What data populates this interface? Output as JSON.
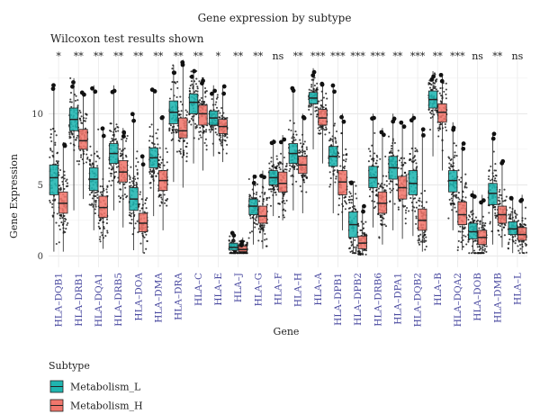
{
  "chart_data": {
    "type": "box",
    "title": "Gene expression by subtype",
    "subtitle": "Wilcoxon test results shown",
    "xlabel": "Gene",
    "ylabel": "Gene Expression",
    "ylim": [
      -0.8,
      14.2
    ],
    "yticks": [
      0,
      5,
      10
    ],
    "grid": true,
    "categories": [
      "HLA–DQB1",
      "HLA–DRB1",
      "HLA–DQA1",
      "HLA–DRB5",
      "HLA–DOA",
      "HLA–DMA",
      "HLA–DRA",
      "HLA–C",
      "HLA–E",
      "HLA–J",
      "HLA–G",
      "HLA–F",
      "HLA–H",
      "HLA–A",
      "HLA–DPB1",
      "HLA–DPB2",
      "HLA–DRB6",
      "HLA–DPA1",
      "HLA–DQB2",
      "HLA–B",
      "HLA–DQA2",
      "HLA–DOB",
      "HLA–DMB",
      "HLA–L"
    ],
    "significance": [
      "*",
      "**",
      "**",
      "**",
      "**",
      "**",
      "**",
      "**",
      "*",
      "**",
      "**",
      "ns",
      "**",
      "***",
      "***",
      "***",
      "***",
      "**",
      "***",
      "**",
      "***",
      "ns",
      "**",
      "ns"
    ],
    "series": [
      {
        "name": "Metabolism_L",
        "color": "#1fb5b0",
        "boxes": [
          [
            0.3,
            4.3,
            5.5,
            6.4,
            12.0
          ],
          [
            3.2,
            8.8,
            9.6,
            10.4,
            12.5
          ],
          [
            1.8,
            4.6,
            5.4,
            6.2,
            12.0
          ],
          [
            3.2,
            6.5,
            7.2,
            7.9,
            12.0
          ],
          [
            0.4,
            3.2,
            4.0,
            4.8,
            10.0
          ],
          [
            2.8,
            6.2,
            6.9,
            7.6,
            11.8
          ],
          [
            5.2,
            9.3,
            10.1,
            10.9,
            13.4
          ],
          [
            6.5,
            10.0,
            10.8,
            11.4,
            13.0
          ],
          [
            7.0,
            9.2,
            9.7,
            10.2,
            12.0
          ],
          [
            0.2,
            0.4,
            0.6,
            0.9,
            1.7
          ],
          [
            0.8,
            2.9,
            3.5,
            4.0,
            5.7
          ],
          [
            2.8,
            5.0,
            5.5,
            6.0,
            8.2
          ],
          [
            3.2,
            6.5,
            7.2,
            7.9,
            11.8
          ],
          [
            7.5,
            10.7,
            11.1,
            11.5,
            13.2
          ],
          [
            3.0,
            6.3,
            7.0,
            7.7,
            12.0
          ],
          [
            0.2,
            1.3,
            2.2,
            3.1,
            5.2
          ],
          [
            2.0,
            4.8,
            5.5,
            6.3,
            10.0
          ],
          [
            1.8,
            5.4,
            6.2,
            7.0,
            10.0
          ],
          [
            1.4,
            4.3,
            5.1,
            6.0,
            10.0
          ],
          [
            7.0,
            10.4,
            11.0,
            11.6,
            13.0
          ],
          [
            1.8,
            4.5,
            5.3,
            6.0,
            9.4
          ],
          [
            0.2,
            1.2,
            1.7,
            2.3,
            4.6
          ],
          [
            0.8,
            3.6,
            4.4,
            5.1,
            8.6
          ],
          [
            0.2,
            1.5,
            1.9,
            2.4,
            4.1
          ]
        ]
      },
      {
        "name": "Metabolism_H",
        "color": "#f0766c",
        "boxes": [
          [
            0.3,
            3.0,
            3.7,
            4.5,
            8.0
          ],
          [
            4.0,
            7.5,
            8.1,
            8.9,
            11.5
          ],
          [
            0.5,
            2.7,
            3.4,
            4.2,
            9.0
          ],
          [
            2.0,
            5.2,
            5.9,
            6.7,
            9.0
          ],
          [
            0.2,
            1.7,
            2.3,
            3.0,
            7.0
          ],
          [
            1.8,
            4.6,
            5.3,
            6.0,
            9.8
          ],
          [
            4.8,
            8.3,
            8.8,
            9.7,
            13.8
          ],
          [
            6.0,
            9.2,
            10.0,
            10.6,
            12.5
          ],
          [
            6.6,
            8.6,
            9.1,
            9.6,
            12.0
          ],
          [
            0.2,
            0.3,
            0.45,
            0.7,
            1.3
          ],
          [
            0.5,
            2.3,
            2.8,
            3.5,
            6.0
          ],
          [
            2.5,
            4.5,
            5.1,
            5.9,
            8.5
          ],
          [
            3.0,
            5.8,
            6.4,
            7.0,
            10.0
          ],
          [
            6.5,
            9.2,
            9.7,
            10.3,
            12.2
          ],
          [
            1.8,
            4.3,
            5.2,
            6.0,
            10.0
          ],
          [
            0.1,
            0.5,
            0.9,
            1.4,
            3.5
          ],
          [
            0.8,
            3.0,
            3.7,
            4.5,
            9.0
          ],
          [
            1.2,
            4.0,
            4.8,
            5.6,
            9.5
          ],
          [
            0.3,
            1.8,
            2.5,
            3.3,
            9.0
          ],
          [
            6.0,
            9.4,
            10.1,
            10.7,
            12.8
          ],
          [
            0.4,
            2.2,
            2.9,
            3.8,
            8.0
          ],
          [
            0.2,
            0.8,
            1.3,
            1.8,
            4.3
          ],
          [
            0.6,
            2.3,
            2.9,
            3.5,
            6.8
          ],
          [
            0.2,
            1.1,
            1.5,
            2.0,
            4.3
          ]
        ]
      }
    ],
    "legend": {
      "title": "Subtype",
      "placement": "bottom-left"
    }
  }
}
